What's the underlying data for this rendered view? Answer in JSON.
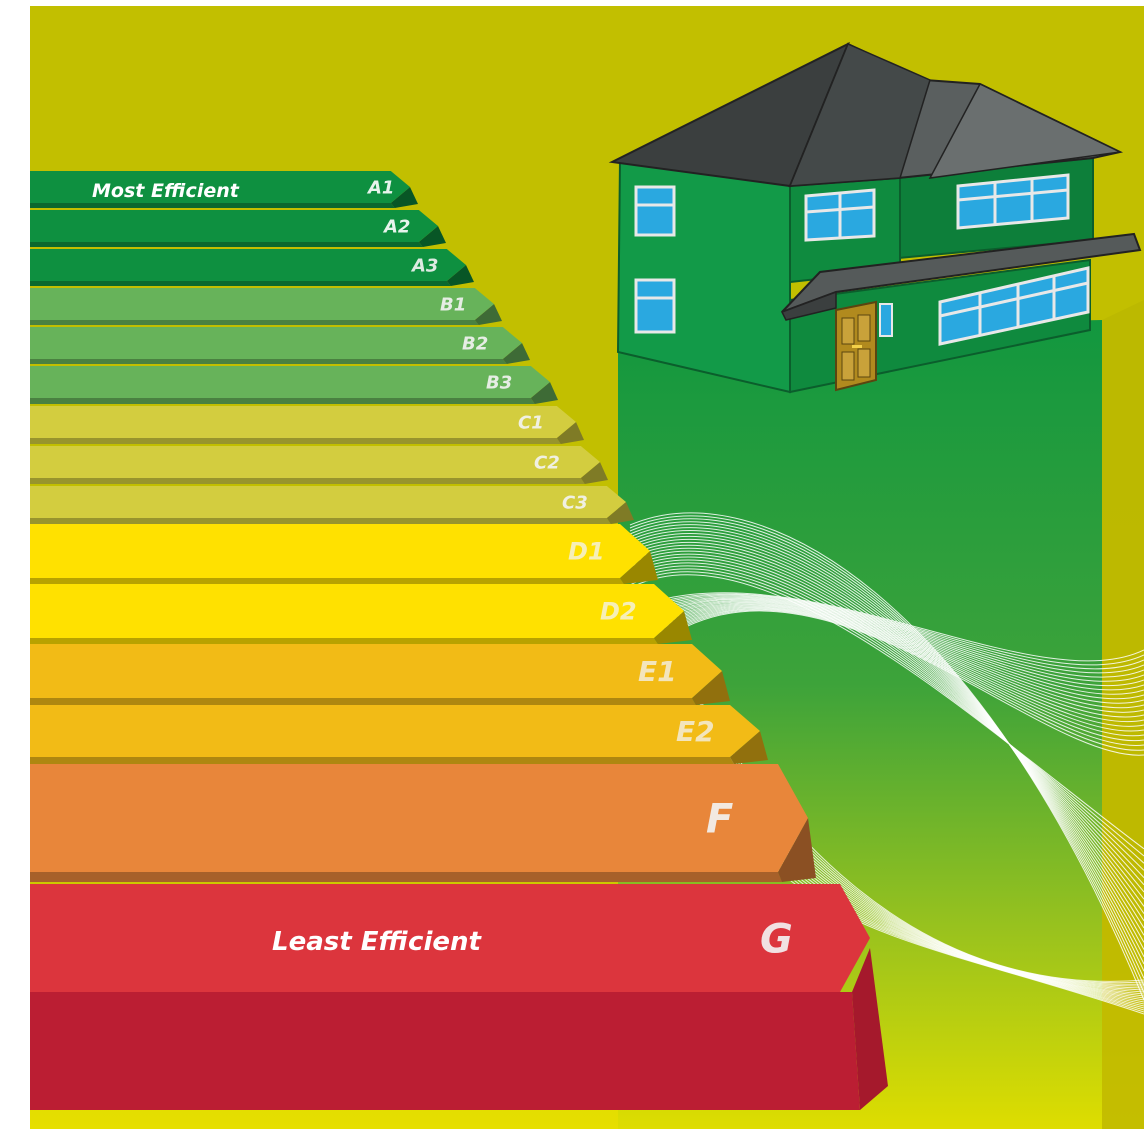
{
  "labels": {
    "top_caption": "Most Efficient",
    "bottom_caption": "Least Efficient"
  },
  "bands": [
    {
      "grade": "A1",
      "color": "#0e9040"
    },
    {
      "grade": "A2",
      "color": "#0e9040"
    },
    {
      "grade": "A3",
      "color": "#0e9040"
    },
    {
      "grade": "B1",
      "color": "#67b35a"
    },
    {
      "grade": "B2",
      "color": "#67b35a"
    },
    {
      "grade": "B3",
      "color": "#67b35a"
    },
    {
      "grade": "C1",
      "color": "#d3cd3f"
    },
    {
      "grade": "C2",
      "color": "#d3cd3f"
    },
    {
      "grade": "C3",
      "color": "#d3cd3f"
    },
    {
      "grade": "D1",
      "color": "#ffe100"
    },
    {
      "grade": "D2",
      "color": "#ffe100"
    },
    {
      "grade": "E1",
      "color": "#f2bb16"
    },
    {
      "grade": "E2",
      "color": "#f2bb16"
    },
    {
      "grade": "F",
      "color": "#e8863a"
    },
    {
      "grade": "G",
      "color": "#dc353d"
    }
  ],
  "colors": {
    "background": "#c2bf00",
    "house_wall": "#129a48",
    "roof": "#555a5a",
    "window_glass": "#2aa8e0",
    "door": "#b18a1e"
  }
}
